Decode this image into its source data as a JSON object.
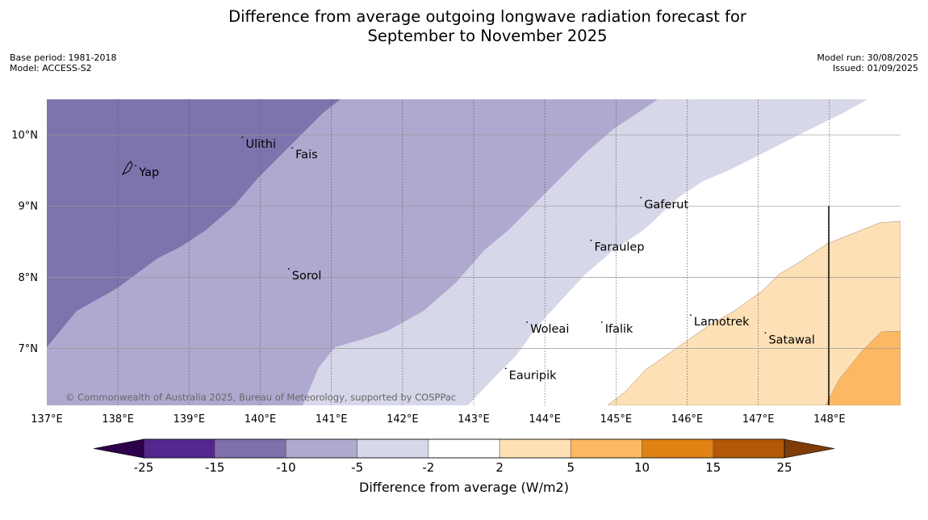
{
  "title_line1": "Difference from average outgoing longwave radiation forecast for",
  "title_line2": "September to November 2025",
  "meta_left": {
    "base_period": "Base period: 1981-2018",
    "model": "Model: ACCESS-S2"
  },
  "meta_right": {
    "model_run": "Model run: 30/08/2025",
    "issued": "Issued: 01/09/2025"
  },
  "copyright": "© Commonwealth of Australia 2025, Bureau of Meteorology, supported by COSPPac",
  "map": {
    "lon_range": [
      137,
      149
    ],
    "lat_range": [
      6.2,
      10.5
    ],
    "lon_ticks": [
      {
        "value": 137,
        "label": "137°E"
      },
      {
        "value": 138,
        "label": "138°E"
      },
      {
        "value": 139,
        "label": "139°E"
      },
      {
        "value": 140,
        "label": "140°E"
      },
      {
        "value": 141,
        "label": "141°E"
      },
      {
        "value": 142,
        "label": "142°E"
      },
      {
        "value": 143,
        "label": "143°E"
      },
      {
        "value": 144,
        "label": "144°E"
      },
      {
        "value": 145,
        "label": "145°E"
      },
      {
        "value": 146,
        "label": "146°E"
      },
      {
        "value": 147,
        "label": "147°E"
      },
      {
        "value": 148,
        "label": "148°E"
      }
    ],
    "lat_ticks": [
      {
        "value": 10,
        "label": "10°N"
      },
      {
        "value": 9,
        "label": "9°N"
      },
      {
        "value": 8,
        "label": "8°N"
      },
      {
        "value": 7,
        "label": "7°N"
      }
    ],
    "places": [
      {
        "name": "Yap",
        "lon": 138.25,
        "lat": 9.5
      },
      {
        "name": "Ulithi",
        "lon": 139.75,
        "lat": 9.9
      },
      {
        "name": "Fais",
        "lon": 140.45,
        "lat": 9.75
      },
      {
        "name": "Gaferut",
        "lon": 145.35,
        "lat": 9.05
      },
      {
        "name": "Faraulep",
        "lon": 144.65,
        "lat": 8.45
      },
      {
        "name": "Sorol",
        "lon": 140.4,
        "lat": 8.05
      },
      {
        "name": "Lamotrek",
        "lon": 146.05,
        "lat": 7.4
      },
      {
        "name": "Woleai",
        "lon": 143.75,
        "lat": 7.3
      },
      {
        "name": "Ifalik",
        "lon": 144.8,
        "lat": 7.3
      },
      {
        "name": "Satawal",
        "lon": 147.1,
        "lat": 7.15
      },
      {
        "name": "Eauripik",
        "lon": 143.45,
        "lat": 6.65
      }
    ]
  },
  "colorbar": {
    "label": "Difference from average (W/m2)",
    "boundaries": [
      "-25",
      "-15",
      "-10",
      "-5",
      "-2",
      "2",
      "5",
      "10",
      "15",
      "25"
    ],
    "colors": [
      "#54278f",
      "#7f6faa",
      "#afa9d0",
      "#d7d7ea",
      "#ffffff",
      "#fee0b6",
      "#fdb863",
      "#e08214",
      "#b35806"
    ],
    "extend_low": "#2d004b",
    "extend_high": "#7f3b08"
  }
}
